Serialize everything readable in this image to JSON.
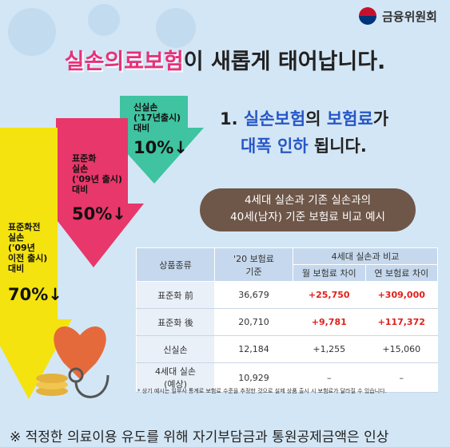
{
  "logo": "금융위원회",
  "headline": {
    "highlight": "실손의료보험",
    "rest": "이 새롭게 태어납니다."
  },
  "arrows": [
    {
      "lines": [
        "신실손",
        "('17년출시)",
        "대비"
      ],
      "rate": "10%↓"
    },
    {
      "lines": [
        "표준화",
        "실손",
        "('09년 출시)",
        "대비"
      ],
      "rate": "50%↓"
    },
    {
      "lines": [
        "표준화전",
        "실손",
        "('09년",
        "이전 출시)",
        "대비"
      ],
      "rate": "70%↓"
    }
  ],
  "point": {
    "number": "1.",
    "a": "실손보험",
    "b": "의 ",
    "c": "보험료",
    "d": "가",
    "e": "대폭 인하",
    "f": " 됩니다."
  },
  "bubble": [
    "4세대 실손과 기존 실손과의",
    "40세(남자) 기준 보험료 비교 예시"
  ],
  "table": {
    "headers": {
      "product": "상품종류",
      "base": [
        "'20 보험료",
        "기준"
      ],
      "compare": "4세대 실손과 비교",
      "monthly": "월 보험료 차이",
      "yearly": "연 보험료 차이"
    },
    "rows": [
      [
        "표준화 前",
        "36,679",
        "+25,750",
        "+309,000"
      ],
      [
        "표준화 後",
        "20,710",
        "+9,781",
        "+117,372"
      ],
      [
        "신실손",
        "12,184",
        "+1,255",
        "+15,060"
      ],
      [
        [
          "4세대 실손",
          "(예상)"
        ],
        "10,929",
        "–",
        "–"
      ]
    ]
  },
  "footnote": "* 상기 예시는 일부사 통계로 보험료 수준을 추정한 것으로 실제 상품 출시 시 보험료가 달라질 수 있습니다.",
  "bottom_note": "※ 적정한 의료이용 유도를 위해 자기부담금과 통원공제금액은 인상"
}
